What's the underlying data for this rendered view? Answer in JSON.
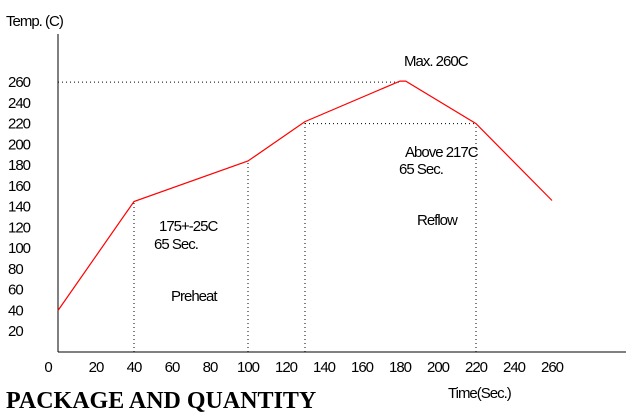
{
  "chart_data": {
    "type": "line",
    "title": "",
    "xlabel": "Time(Sec.)",
    "ylabel": "Temp. (C)",
    "xlim": [
      0,
      280
    ],
    "ylim": [
      0,
      270
    ],
    "x_ticks": [
      0,
      20,
      40,
      60,
      80,
      100,
      120,
      140,
      160,
      180,
      200,
      220,
      240,
      260
    ],
    "y_ticks": [
      20,
      40,
      60,
      80,
      100,
      120,
      140,
      160,
      180,
      200,
      220,
      240,
      260
    ],
    "series": [
      {
        "x": [
          0,
          40,
          100,
          130,
          180,
          183,
          220,
          260
        ],
        "y": [
          40,
          145,
          184,
          222,
          261,
          261,
          220,
          146
        ]
      }
    ],
    "reference_lines": [
      {
        "orientation": "horizontal",
        "y": 260,
        "x_from": 0,
        "x_to": 180
      },
      {
        "orientation": "horizontal",
        "y": 220,
        "x_from": 130,
        "x_to": 220
      },
      {
        "orientation": "vertical",
        "x": 40,
        "y_from": 0,
        "y_to": 145
      },
      {
        "orientation": "vertical",
        "x": 100,
        "y_from": 0,
        "y_to": 184
      },
      {
        "orientation": "vertical",
        "x": 130,
        "y_from": 0,
        "y_to": 222
      },
      {
        "orientation": "vertical",
        "x": 220,
        "y_from": 0,
        "y_to": 220
      }
    ],
    "annotations": [
      {
        "id": "max",
        "text": "Max. 260C"
      },
      {
        "id": "above-1",
        "text": "Above 217C"
      },
      {
        "id": "above-2",
        "text": "65 Sec."
      },
      {
        "id": "reflow",
        "text": "Reflow"
      },
      {
        "id": "pre-1",
        "text": "175+-25C"
      },
      {
        "id": "pre-2",
        "text": "65 Sec."
      },
      {
        "id": "preheat",
        "text": "Preheat"
      }
    ],
    "colors": {
      "curve": "#ff0000",
      "axes": "#000000"
    },
    "grid": false
  },
  "page": {
    "heading": "PACKAGE AND QUANTITY"
  }
}
